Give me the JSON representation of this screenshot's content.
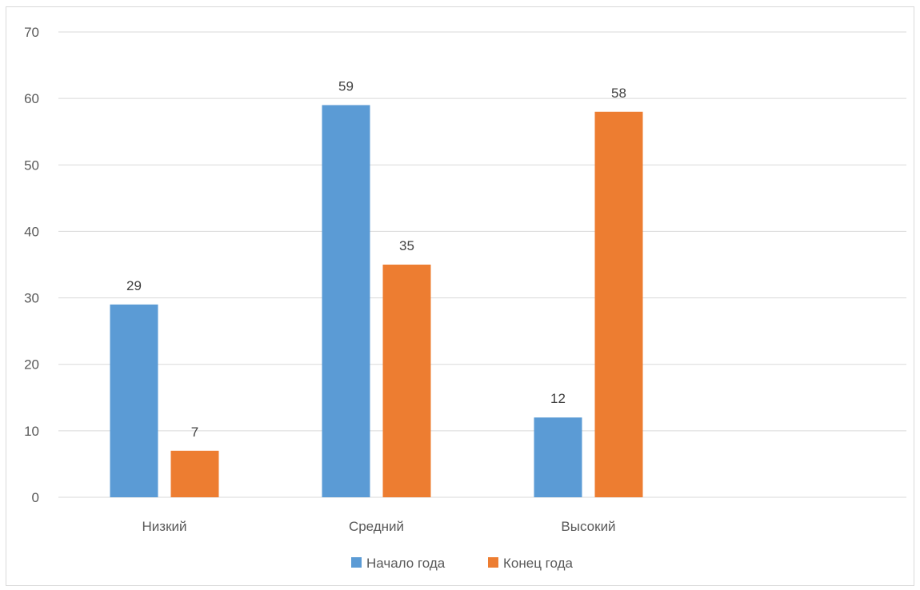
{
  "chart_data": {
    "type": "bar",
    "categories": [
      "Низкий",
      "Средний",
      "Высокий",
      ""
    ],
    "series": [
      {
        "name": "Начало года",
        "color": "#5b9bd5",
        "values": [
          29,
          59,
          12,
          null
        ]
      },
      {
        "name": "Конец года",
        "color": "#ed7d31",
        "values": [
          7,
          35,
          58,
          null
        ]
      }
    ],
    "ylim": [
      0,
      70
    ],
    "yticks": [
      0,
      10,
      20,
      30,
      40,
      50,
      60,
      70
    ],
    "grid": true,
    "legend_position": "bottom",
    "data_labels": true
  }
}
